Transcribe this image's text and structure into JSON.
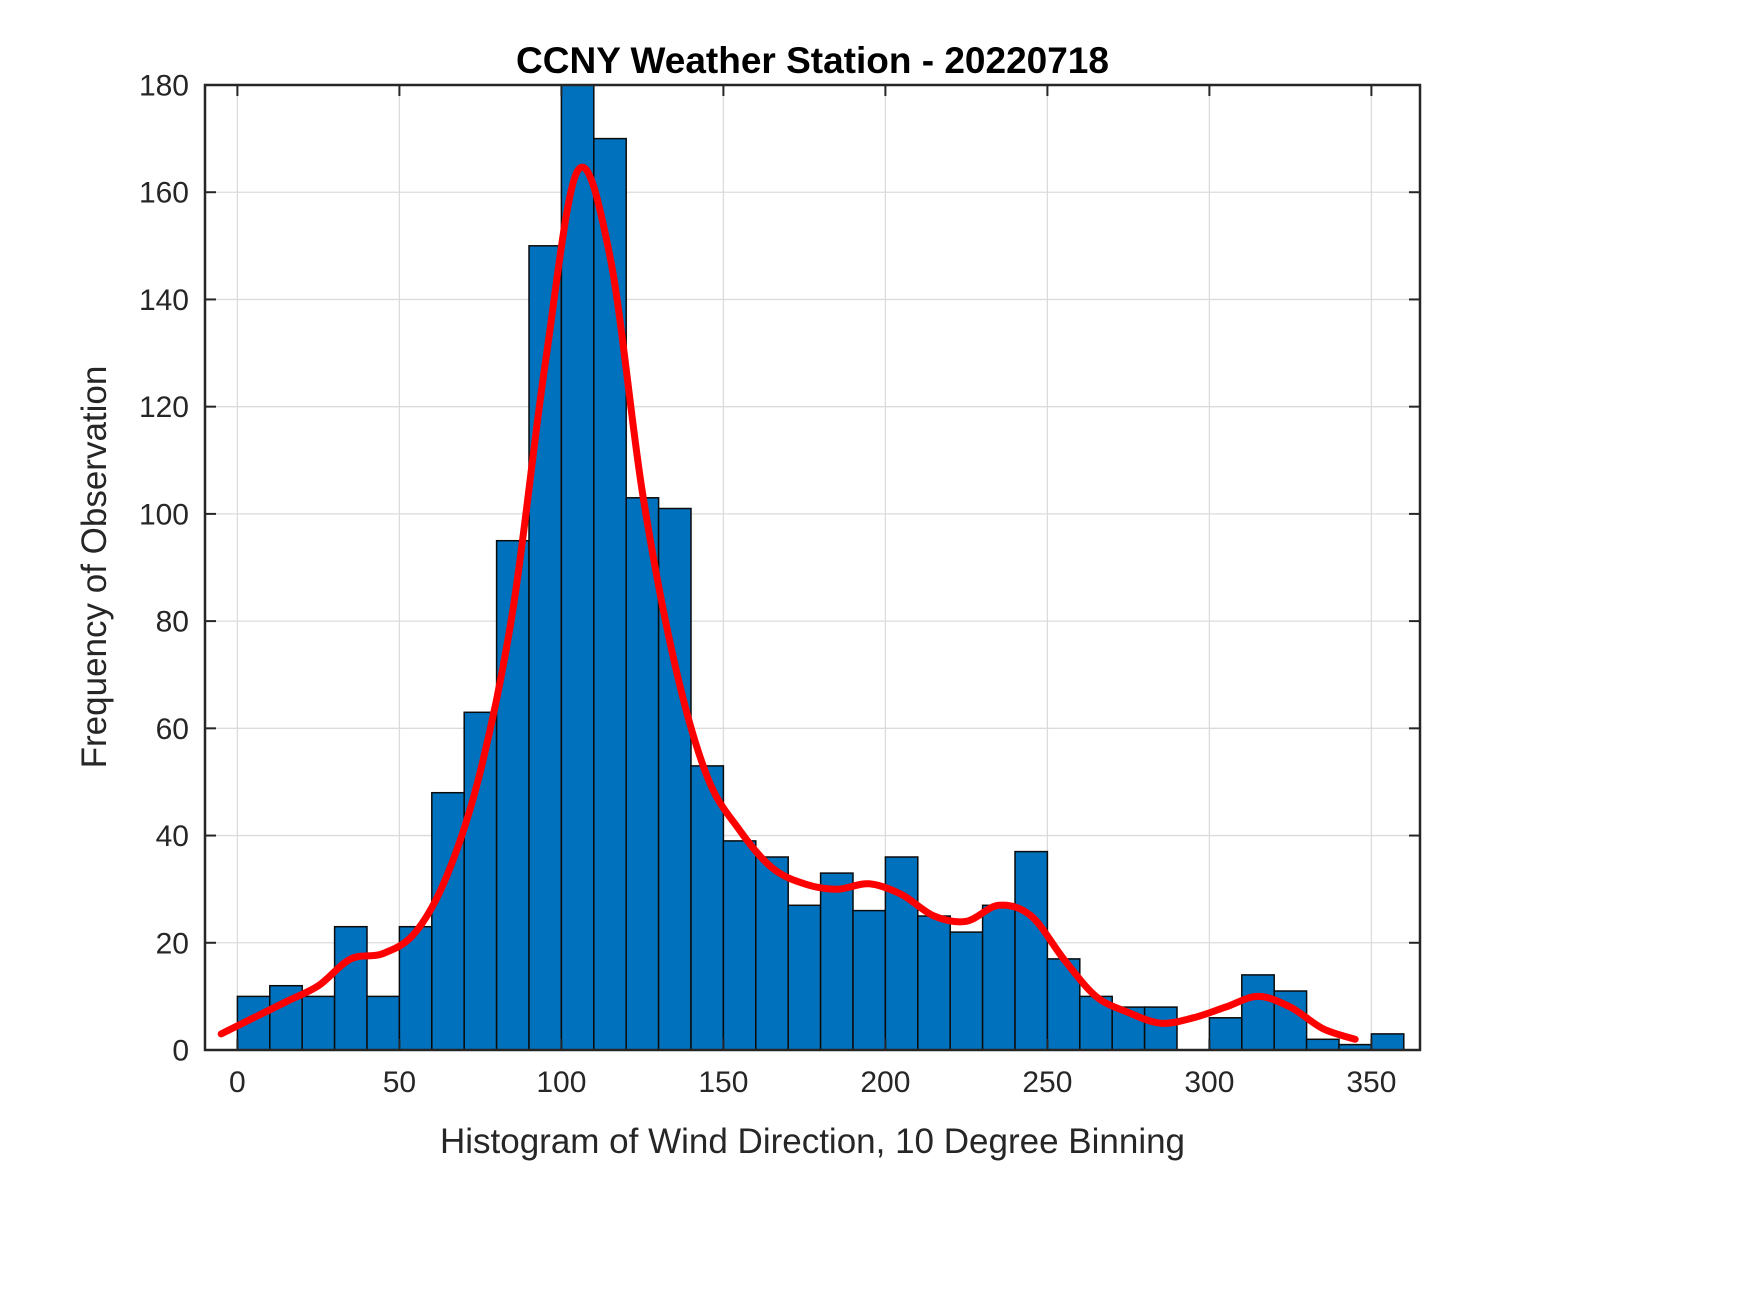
{
  "chart_data": {
    "type": "bar",
    "title": "CCNY Weather Station - 20220718",
    "xlabel": "Histogram of Wind Direction, 10 Degree Binning",
    "ylabel": "Frequency of Observation",
    "xlim": [
      -10,
      365
    ],
    "ylim": [
      0,
      180
    ],
    "xticks": [
      0,
      50,
      100,
      150,
      200,
      250,
      300,
      350
    ],
    "yticks": [
      0,
      20,
      40,
      60,
      80,
      100,
      120,
      140,
      160,
      180
    ],
    "grid": true,
    "legend": "none",
    "bin_start": 0,
    "bin_width": 10,
    "bar_values": [
      10,
      12,
      10,
      23,
      10,
      23,
      48,
      63,
      95,
      150,
      180,
      170,
      103,
      101,
      53,
      39,
      36,
      27,
      33,
      26,
      36,
      25,
      22,
      27,
      37,
      17,
      10,
      8,
      8,
      0,
      6,
      14,
      11,
      2,
      1,
      3
    ],
    "bar_color": "#0072BD",
    "bar_edge_color": "#0b0b0b",
    "grid_color": "#dbdbdb",
    "axis_color": "#262626",
    "fit_curve": {
      "name": "smoothed-fit-line",
      "color": "#ff0000",
      "x": [
        -5,
        5,
        15,
        25,
        35,
        45,
        55,
        65,
        75,
        85,
        95,
        105,
        115,
        125,
        135,
        145,
        155,
        165,
        175,
        185,
        195,
        205,
        215,
        225,
        235,
        245,
        255,
        265,
        275,
        285,
        295,
        305,
        315,
        325,
        335,
        345
      ],
      "y": [
        3,
        6,
        9,
        12,
        17,
        18,
        22,
        33,
        52,
        82,
        128,
        164,
        148,
        104,
        72,
        51,
        41,
        34,
        31,
        30,
        31,
        29,
        25,
        24,
        27,
        25,
        17,
        10,
        7,
        5,
        6,
        8,
        10,
        8,
        4,
        2
      ]
    }
  }
}
